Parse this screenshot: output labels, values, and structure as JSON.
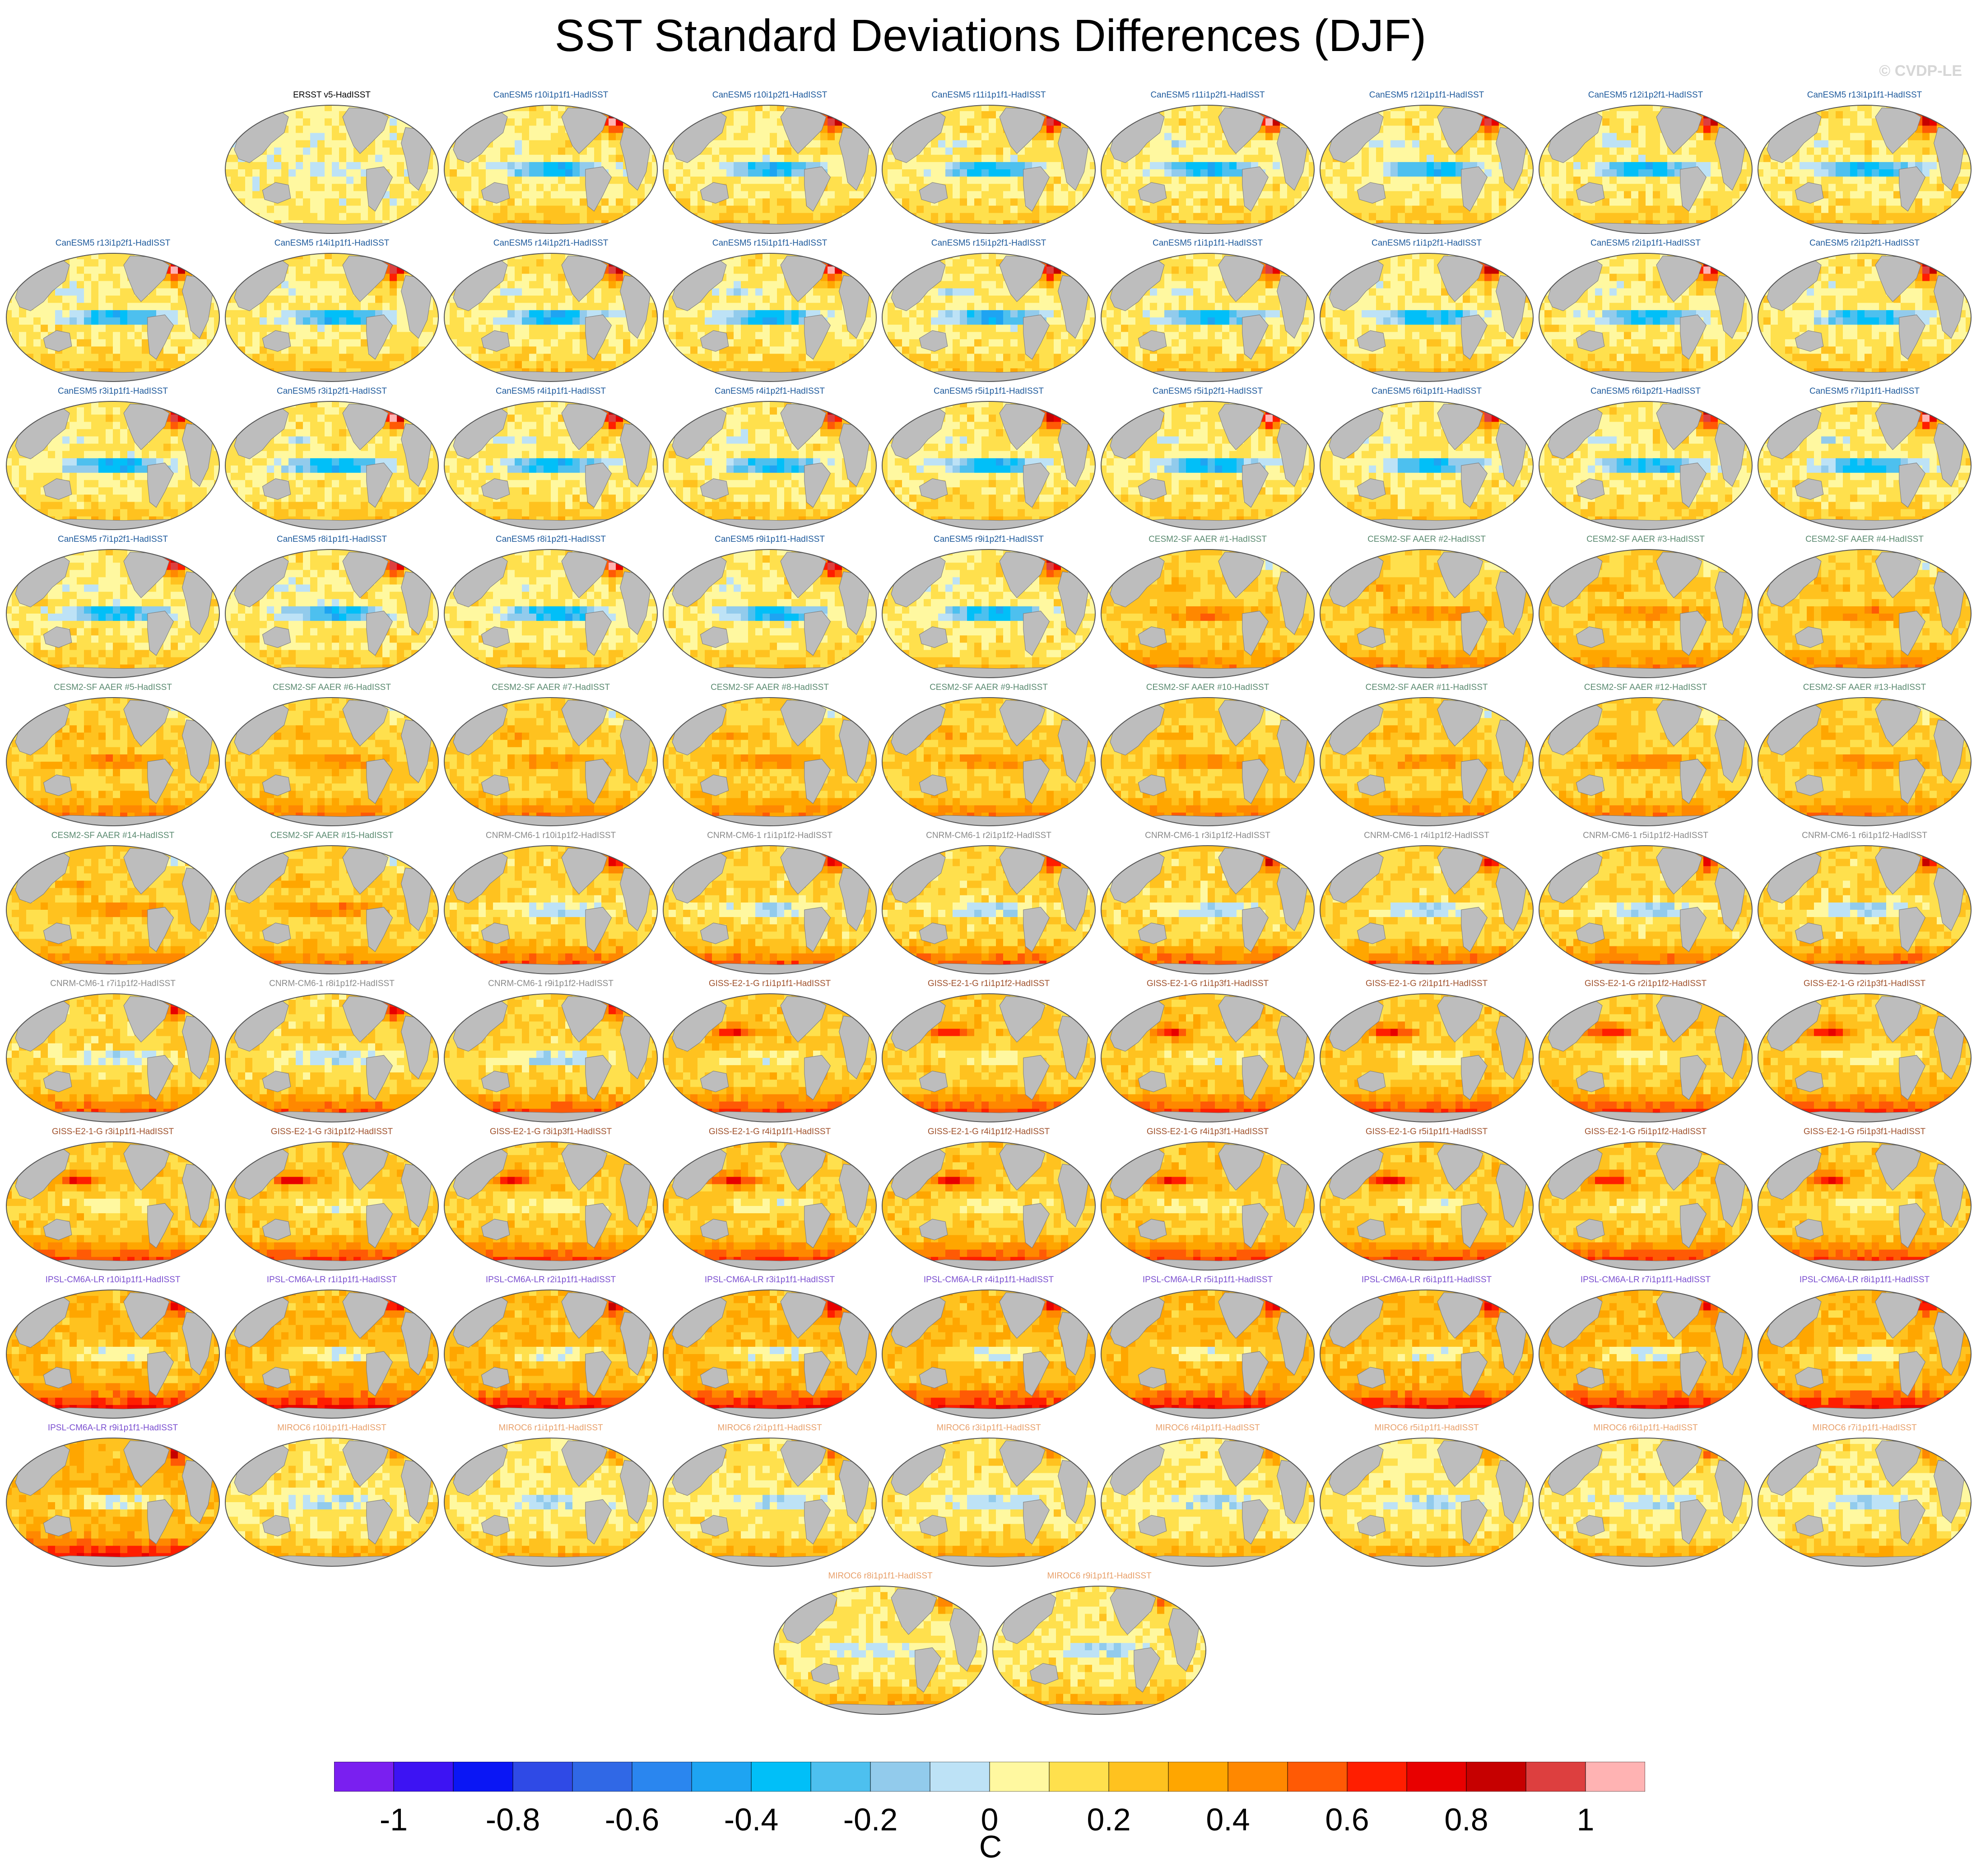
{
  "title": "SST Standard Deviations Differences (DJF)",
  "watermark": "© CVDP-LE",
  "colorbar": {
    "units": "C",
    "tick_labels": [
      "-1",
      "-0.8",
      "-0.6",
      "-0.4",
      "-0.2",
      "0",
      "0.2",
      "0.4",
      "0.6",
      "0.8",
      "1"
    ],
    "tick_values": [
      -1,
      -0.8,
      -0.6,
      -0.4,
      -0.2,
      0,
      0.2,
      0.4,
      0.6,
      0.8,
      1
    ],
    "range": [
      -1.1,
      1.1
    ],
    "bin_width": 0.1,
    "colors": [
      "#7a1ff0",
      "#3d13f3",
      "#0a16f5",
      "#2f4ae6",
      "#3068e6",
      "#2a86ef",
      "#1ea4f2",
      "#01bff8",
      "#4dc0ef",
      "#92cbec",
      "#bde2f6",
      "#fff8a0",
      "#ffe04d",
      "#ffc21f",
      "#ffa600",
      "#ff8800",
      "#ff5a05",
      "#ff1e00",
      "#e80000",
      "#c60000",
      "#dd3f3f",
      "#ffb3b3"
    ]
  },
  "map": {
    "ocean_base": "#fff6a8",
    "land_color": "#bdbdbd",
    "outline_color": "#555555"
  },
  "panels": [
    {
      "label": "ERSST v5-HadISST",
      "color": "#000000",
      "style": "obs"
    },
    {
      "label": "CanESM5 r10i1p1f1-HadISST",
      "color": "#1e5a9c",
      "style": "canesm"
    },
    {
      "label": "CanESM5 r10i1p2f1-HadISST",
      "color": "#1e5a9c",
      "style": "canesm"
    },
    {
      "label": "CanESM5 r11i1p1f1-HadISST",
      "color": "#1e5a9c",
      "style": "canesm"
    },
    {
      "label": "CanESM5 r11i1p2f1-HadISST",
      "color": "#1e5a9c",
      "style": "canesm"
    },
    {
      "label": "CanESM5 r12i1p1f1-HadISST",
      "color": "#1e5a9c",
      "style": "canesm"
    },
    {
      "label": "CanESM5 r12i1p2f1-HadISST",
      "color": "#1e5a9c",
      "style": "canesm"
    },
    {
      "label": "CanESM5 r13i1p1f1-HadISST",
      "color": "#1e5a9c",
      "style": "canesm"
    },
    {
      "label": "CanESM5 r13i1p2f1-HadISST",
      "color": "#1e5a9c",
      "style": "canesm"
    },
    {
      "label": "CanESM5 r14i1p1f1-HadISST",
      "color": "#1e5a9c",
      "style": "canesm"
    },
    {
      "label": "CanESM5 r14i1p2f1-HadISST",
      "color": "#1e5a9c",
      "style": "canesm"
    },
    {
      "label": "CanESM5 r15i1p1f1-HadISST",
      "color": "#1e5a9c",
      "style": "canesm"
    },
    {
      "label": "CanESM5 r15i1p2f1-HadISST",
      "color": "#1e5a9c",
      "style": "canesm"
    },
    {
      "label": "CanESM5 r1i1p1f1-HadISST",
      "color": "#1e5a9c",
      "style": "canesm"
    },
    {
      "label": "CanESM5 r1i1p2f1-HadISST",
      "color": "#1e5a9c",
      "style": "canesm"
    },
    {
      "label": "CanESM5 r2i1p1f1-HadISST",
      "color": "#1e5a9c",
      "style": "canesm"
    },
    {
      "label": "CanESM5 r2i1p2f1-HadISST",
      "color": "#1e5a9c",
      "style": "canesm"
    },
    {
      "label": "CanESM5 r3i1p1f1-HadISST",
      "color": "#1e5a9c",
      "style": "canesm"
    },
    {
      "label": "CanESM5 r3i1p2f1-HadISST",
      "color": "#1e5a9c",
      "style": "canesm"
    },
    {
      "label": "CanESM5 r4i1p1f1-HadISST",
      "color": "#1e5a9c",
      "style": "canesm"
    },
    {
      "label": "CanESM5 r4i1p2f1-HadISST",
      "color": "#1e5a9c",
      "style": "canesm"
    },
    {
      "label": "CanESM5 r5i1p1f1-HadISST",
      "color": "#1e5a9c",
      "style": "canesm"
    },
    {
      "label": "CanESM5 r5i1p2f1-HadISST",
      "color": "#1e5a9c",
      "style": "canesm"
    },
    {
      "label": "CanESM5 r6i1p1f1-HadISST",
      "color": "#1e5a9c",
      "style": "canesm"
    },
    {
      "label": "CanESM5 r6i1p2f1-HadISST",
      "color": "#1e5a9c",
      "style": "canesm"
    },
    {
      "label": "CanESM5 r7i1p1f1-HadISST",
      "color": "#1e5a9c",
      "style": "canesm"
    },
    {
      "label": "CanESM5 r7i1p2f1-HadISST",
      "color": "#1e5a9c",
      "style": "canesm"
    },
    {
      "label": "CanESM5 r8i1p1f1-HadISST",
      "color": "#1e5a9c",
      "style": "canesm"
    },
    {
      "label": "CanESM5 r8i1p2f1-HadISST",
      "color": "#1e5a9c",
      "style": "canesm"
    },
    {
      "label": "CanESM5 r9i1p1f1-HadISST",
      "color": "#1e5a9c",
      "style": "canesm"
    },
    {
      "label": "CanESM5 r9i1p2f1-HadISST",
      "color": "#1e5a9c",
      "style": "canesm"
    },
    {
      "label": "CESM2-SF AAER #1-HadISST",
      "color": "#5a8a70",
      "style": "cesm"
    },
    {
      "label": "CESM2-SF AAER #2-HadISST",
      "color": "#5a8a70",
      "style": "cesm"
    },
    {
      "label": "CESM2-SF AAER #3-HadISST",
      "color": "#5a8a70",
      "style": "cesm"
    },
    {
      "label": "CESM2-SF AAER #4-HadISST",
      "color": "#5a8a70",
      "style": "cesm"
    },
    {
      "label": "CESM2-SF AAER #5-HadISST",
      "color": "#5a8a70",
      "style": "cesm"
    },
    {
      "label": "CESM2-SF AAER #6-HadISST",
      "color": "#5a8a70",
      "style": "cesm"
    },
    {
      "label": "CESM2-SF AAER #7-HadISST",
      "color": "#5a8a70",
      "style": "cesm"
    },
    {
      "label": "CESM2-SF AAER #8-HadISST",
      "color": "#5a8a70",
      "style": "cesm"
    },
    {
      "label": "CESM2-SF AAER #9-HadISST",
      "color": "#5a8a70",
      "style": "cesm"
    },
    {
      "label": "CESM2-SF AAER #10-HadISST",
      "color": "#5a8a70",
      "style": "cesm"
    },
    {
      "label": "CESM2-SF AAER #11-HadISST",
      "color": "#5a8a70",
      "style": "cesm"
    },
    {
      "label": "CESM2-SF AAER #12-HadISST",
      "color": "#5a8a70",
      "style": "cesm"
    },
    {
      "label": "CESM2-SF AAER #13-HadISST",
      "color": "#5a8a70",
      "style": "cesm"
    },
    {
      "label": "CESM2-SF AAER #14-HadISST",
      "color": "#5a8a70",
      "style": "cesm"
    },
    {
      "label": "CESM2-SF AAER #15-HadISST",
      "color": "#5a8a70",
      "style": "cesm"
    },
    {
      "label": "CNRM-CM6-1 r10i1p1f2-HadISST",
      "color": "#8a8a8a",
      "style": "cnrm"
    },
    {
      "label": "CNRM-CM6-1 r1i1p1f2-HadISST",
      "color": "#8a8a8a",
      "style": "cnrm"
    },
    {
      "label": "CNRM-CM6-1 r2i1p1f2-HadISST",
      "color": "#8a8a8a",
      "style": "cnrm"
    },
    {
      "label": "CNRM-CM6-1 r3i1p1f2-HadISST",
      "color": "#8a8a8a",
      "style": "cnrm"
    },
    {
      "label": "CNRM-CM6-1 r4i1p1f2-HadISST",
      "color": "#8a8a8a",
      "style": "cnrm"
    },
    {
      "label": "CNRM-CM6-1 r5i1p1f2-HadISST",
      "color": "#8a8a8a",
      "style": "cnrm"
    },
    {
      "label": "CNRM-CM6-1 r6i1p1f2-HadISST",
      "color": "#8a8a8a",
      "style": "cnrm"
    },
    {
      "label": "CNRM-CM6-1 r7i1p1f2-HadISST",
      "color": "#8a8a8a",
      "style": "cnrm"
    },
    {
      "label": "CNRM-CM6-1 r8i1p1f2-HadISST",
      "color": "#8a8a8a",
      "style": "cnrm"
    },
    {
      "label": "CNRM-CM6-1 r9i1p1f2-HadISST",
      "color": "#8a8a8a",
      "style": "cnrm"
    },
    {
      "label": "GISS-E2-1-G r1i1p1f1-HadISST",
      "color": "#a0522d",
      "style": "giss"
    },
    {
      "label": "GISS-E2-1-G r1i1p1f2-HadISST",
      "color": "#a0522d",
      "style": "giss"
    },
    {
      "label": "GISS-E2-1-G r1i1p3f1-HadISST",
      "color": "#a0522d",
      "style": "giss"
    },
    {
      "label": "GISS-E2-1-G r2i1p1f1-HadISST",
      "color": "#a0522d",
      "style": "giss"
    },
    {
      "label": "GISS-E2-1-G r2i1p1f2-HadISST",
      "color": "#a0522d",
      "style": "giss"
    },
    {
      "label": "GISS-E2-1-G r2i1p3f1-HadISST",
      "color": "#a0522d",
      "style": "giss"
    },
    {
      "label": "GISS-E2-1-G r3i1p1f1-HadISST",
      "color": "#a0522d",
      "style": "giss"
    },
    {
      "label": "GISS-E2-1-G r3i1p1f2-HadISST",
      "color": "#a0522d",
      "style": "giss"
    },
    {
      "label": "GISS-E2-1-G r3i1p3f1-HadISST",
      "color": "#a0522d",
      "style": "giss"
    },
    {
      "label": "GISS-E2-1-G r4i1p1f1-HadISST",
      "color": "#a0522d",
      "style": "giss"
    },
    {
      "label": "GISS-E2-1-G r4i1p1f2-HadISST",
      "color": "#a0522d",
      "style": "giss"
    },
    {
      "label": "GISS-E2-1-G r4i1p3f1-HadISST",
      "color": "#a0522d",
      "style": "giss"
    },
    {
      "label": "GISS-E2-1-G r5i1p1f1-HadISST",
      "color": "#a0522d",
      "style": "giss"
    },
    {
      "label": "GISS-E2-1-G r5i1p1f2-HadISST",
      "color": "#a0522d",
      "style": "giss"
    },
    {
      "label": "GISS-E2-1-G r5i1p3f1-HadISST",
      "color": "#a0522d",
      "style": "giss"
    },
    {
      "label": "IPSL-CM6A-LR r10i1p1f1-HadISST",
      "color": "#7b4fd0",
      "style": "ipsl"
    },
    {
      "label": "IPSL-CM6A-LR r1i1p1f1-HadISST",
      "color": "#7b4fd0",
      "style": "ipsl"
    },
    {
      "label": "IPSL-CM6A-LR r2i1p1f1-HadISST",
      "color": "#7b4fd0",
      "style": "ipsl"
    },
    {
      "label": "IPSL-CM6A-LR r3i1p1f1-HadISST",
      "color": "#7b4fd0",
      "style": "ipsl"
    },
    {
      "label": "IPSL-CM6A-LR r4i1p1f1-HadISST",
      "color": "#7b4fd0",
      "style": "ipsl"
    },
    {
      "label": "IPSL-CM6A-LR r5i1p1f1-HadISST",
      "color": "#7b4fd0",
      "style": "ipsl"
    },
    {
      "label": "IPSL-CM6A-LR r6i1p1f1-HadISST",
      "color": "#7b4fd0",
      "style": "ipsl"
    },
    {
      "label": "IPSL-CM6A-LR r7i1p1f1-HadISST",
      "color": "#7b4fd0",
      "style": "ipsl"
    },
    {
      "label": "IPSL-CM6A-LR r8i1p1f1-HadISST",
      "color": "#7b4fd0",
      "style": "ipsl"
    },
    {
      "label": "IPSL-CM6A-LR r9i1p1f1-HadISST",
      "color": "#7b4fd0",
      "style": "ipsl"
    },
    {
      "label": "MIROC6 r10i1p1f1-HadISST",
      "color": "#e8a06a",
      "style": "miroc"
    },
    {
      "label": "MIROC6 r1i1p1f1-HadISST",
      "color": "#e8a06a",
      "style": "miroc"
    },
    {
      "label": "MIROC6 r2i1p1f1-HadISST",
      "color": "#e8a06a",
      "style": "miroc"
    },
    {
      "label": "MIROC6 r3i1p1f1-HadISST",
      "color": "#e8a06a",
      "style": "miroc"
    },
    {
      "label": "MIROC6 r4i1p1f1-HadISST",
      "color": "#e8a06a",
      "style": "miroc"
    },
    {
      "label": "MIROC6 r5i1p1f1-HadISST",
      "color": "#e8a06a",
      "style": "miroc"
    },
    {
      "label": "MIROC6 r6i1p1f1-HadISST",
      "color": "#e8a06a",
      "style": "miroc"
    },
    {
      "label": "MIROC6 r7i1p1f1-HadISST",
      "color": "#e8a06a",
      "style": "miroc"
    },
    {
      "label": "MIROC6 r8i1p1f1-HadISST",
      "color": "#e8a06a",
      "style": "miroc"
    },
    {
      "label": "MIROC6 r9i1p1f1-HadISST",
      "color": "#e8a06a",
      "style": "miroc"
    }
  ]
}
